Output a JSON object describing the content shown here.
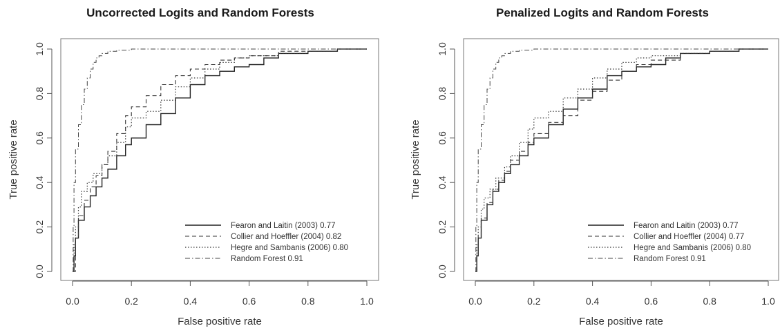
{
  "panels": [
    {
      "title": "Uncorrected Logits and Random Forests",
      "xlabel": "False positive rate",
      "ylabel": "True positive rate",
      "legend": [
        "Fearon and Laitin (2003) 0.77",
        "Collier and Hoeffler (2004) 0.82",
        "Hegre and Sambanis (2006) 0.80",
        "Random Forest 0.91"
      ]
    },
    {
      "title": "Penalized Logits and Random Forests",
      "xlabel": "False positive rate",
      "ylabel": "True positive rate",
      "legend": [
        "Fearon and Laitin (2003) 0.77",
        "Collier and Hoeffler (2004) 0.77",
        "Hegre and Sambanis (2006) 0.80",
        "Random Forest 0.91"
      ]
    }
  ],
  "ticks": {
    "x": [
      "0.0",
      "0.2",
      "0.4",
      "0.6",
      "0.8",
      "1.0"
    ],
    "y": [
      "0.0",
      "0.2",
      "0.4",
      "0.6",
      "0.8",
      "1.0"
    ]
  },
  "line_styles": [
    {
      "dash": "",
      "width": 1.4,
      "color": "#222222"
    },
    {
      "dash": "6,4",
      "width": 1.1,
      "color": "#333333"
    },
    {
      "dash": "1.5,2.5",
      "width": 1.2,
      "color": "#333333"
    },
    {
      "dash": "7,3,1.5,3",
      "width": 1.0,
      "color": "#444444"
    }
  ],
  "chart_data": [
    {
      "type": "line",
      "title": "Uncorrected Logits and Random Forests",
      "xlabel": "False positive rate",
      "ylabel": "True positive rate",
      "xlim": [
        0,
        1
      ],
      "ylim": [
        0,
        1
      ],
      "legend_position": "bottom-right",
      "series": [
        {
          "name": "Fearon and Laitin (2003) 0.77",
          "x": [
            0,
            0.005,
            0.01,
            0.02,
            0.04,
            0.06,
            0.08,
            0.1,
            0.12,
            0.15,
            0.18,
            0.2,
            0.25,
            0.3,
            0.35,
            0.4,
            0.45,
            0.5,
            0.55,
            0.6,
            0.65,
            0.7,
            0.8,
            0.9,
            1.0
          ],
          "y": [
            0,
            0.07,
            0.15,
            0.23,
            0.29,
            0.34,
            0.38,
            0.42,
            0.46,
            0.52,
            0.57,
            0.6,
            0.66,
            0.71,
            0.78,
            0.84,
            0.88,
            0.9,
            0.92,
            0.93,
            0.96,
            0.98,
            0.99,
            1.0,
            1.0
          ]
        },
        {
          "name": "Collier and Hoeffler (2004) 0.82",
          "x": [
            0,
            0.01,
            0.02,
            0.04,
            0.06,
            0.08,
            0.1,
            0.12,
            0.15,
            0.18,
            0.2,
            0.25,
            0.3,
            0.35,
            0.4,
            0.45,
            0.5,
            0.55,
            0.6,
            0.7,
            0.8,
            0.9
          ],
          "y": [
            0,
            0.15,
            0.25,
            0.32,
            0.38,
            0.43,
            0.48,
            0.54,
            0.62,
            0.7,
            0.74,
            0.79,
            0.84,
            0.88,
            0.91,
            0.93,
            0.95,
            0.96,
            0.97,
            0.99,
            0.99,
            1.0
          ]
        },
        {
          "name": "Hegre and Sambanis (2006) 0.80",
          "x": [
            0,
            0.005,
            0.01,
            0.02,
            0.03,
            0.05,
            0.07,
            0.1,
            0.12,
            0.15,
            0.18,
            0.2,
            0.25,
            0.3,
            0.35,
            0.4,
            0.45,
            0.5,
            0.55,
            0.6,
            0.7,
            0.8,
            0.9
          ],
          "y": [
            0,
            0.12,
            0.2,
            0.29,
            0.36,
            0.4,
            0.44,
            0.48,
            0.52,
            0.58,
            0.65,
            0.69,
            0.72,
            0.77,
            0.83,
            0.87,
            0.91,
            0.94,
            0.96,
            0.97,
            0.98,
            0.99,
            1.0
          ]
        },
        {
          "name": "Random Forest 0.91",
          "x": [
            0,
            0.002,
            0.005,
            0.01,
            0.02,
            0.03,
            0.04,
            0.05,
            0.06,
            0.07,
            0.08,
            0.09,
            0.1,
            0.12,
            0.15,
            0.2,
            0.3,
            0.5,
            1.0
          ],
          "y": [
            0,
            0.2,
            0.4,
            0.55,
            0.66,
            0.75,
            0.82,
            0.87,
            0.91,
            0.94,
            0.96,
            0.97,
            0.98,
            0.99,
            0.995,
            1.0,
            1.0,
            1.0,
            1.0
          ]
        }
      ]
    },
    {
      "type": "line",
      "title": "Penalized Logits and Random Forests",
      "xlabel": "False positive rate",
      "ylabel": "True positive rate",
      "xlim": [
        0,
        1
      ],
      "ylim": [
        0,
        1
      ],
      "legend_position": "bottom-right",
      "series": [
        {
          "name": "Fearon and Laitin (2003) 0.77",
          "x": [
            0,
            0.005,
            0.01,
            0.02,
            0.04,
            0.06,
            0.08,
            0.1,
            0.12,
            0.15,
            0.18,
            0.2,
            0.25,
            0.3,
            0.35,
            0.4,
            0.45,
            0.5,
            0.55,
            0.6,
            0.65,
            0.7,
            0.8,
            0.9,
            1.0
          ],
          "y": [
            0,
            0.07,
            0.15,
            0.23,
            0.3,
            0.36,
            0.4,
            0.44,
            0.48,
            0.52,
            0.57,
            0.6,
            0.66,
            0.73,
            0.78,
            0.82,
            0.88,
            0.9,
            0.92,
            0.93,
            0.96,
            0.98,
            0.99,
            1.0,
            1.0
          ]
        },
        {
          "name": "Collier and Hoeffler (2004) 0.77",
          "x": [
            0,
            0.005,
            0.01,
            0.02,
            0.04,
            0.06,
            0.08,
            0.1,
            0.12,
            0.15,
            0.18,
            0.2,
            0.25,
            0.3,
            0.35,
            0.4,
            0.45,
            0.5,
            0.55,
            0.6,
            0.7,
            0.8,
            0.9
          ],
          "y": [
            0,
            0.08,
            0.16,
            0.24,
            0.31,
            0.37,
            0.41,
            0.45,
            0.5,
            0.54,
            0.58,
            0.62,
            0.67,
            0.7,
            0.77,
            0.81,
            0.86,
            0.9,
            0.93,
            0.95,
            0.98,
            0.99,
            1.0
          ]
        },
        {
          "name": "Hegre and Sambanis (2006) 0.80",
          "x": [
            0,
            0.005,
            0.01,
            0.02,
            0.03,
            0.05,
            0.07,
            0.1,
            0.12,
            0.15,
            0.18,
            0.2,
            0.25,
            0.3,
            0.35,
            0.4,
            0.45,
            0.5,
            0.55,
            0.6,
            0.7,
            0.8,
            0.9
          ],
          "y": [
            0,
            0.12,
            0.2,
            0.28,
            0.33,
            0.37,
            0.42,
            0.47,
            0.52,
            0.58,
            0.64,
            0.69,
            0.72,
            0.78,
            0.82,
            0.87,
            0.91,
            0.94,
            0.96,
            0.97,
            0.98,
            0.99,
            1.0
          ]
        },
        {
          "name": "Random Forest 0.91",
          "x": [
            0,
            0.002,
            0.005,
            0.01,
            0.02,
            0.03,
            0.04,
            0.05,
            0.06,
            0.07,
            0.08,
            0.09,
            0.1,
            0.12,
            0.15,
            0.2,
            0.3,
            0.5,
            1.0
          ],
          "y": [
            0,
            0.2,
            0.4,
            0.55,
            0.66,
            0.75,
            0.82,
            0.87,
            0.91,
            0.94,
            0.96,
            0.97,
            0.98,
            0.99,
            0.995,
            1.0,
            1.0,
            1.0,
            1.0
          ]
        }
      ]
    }
  ]
}
